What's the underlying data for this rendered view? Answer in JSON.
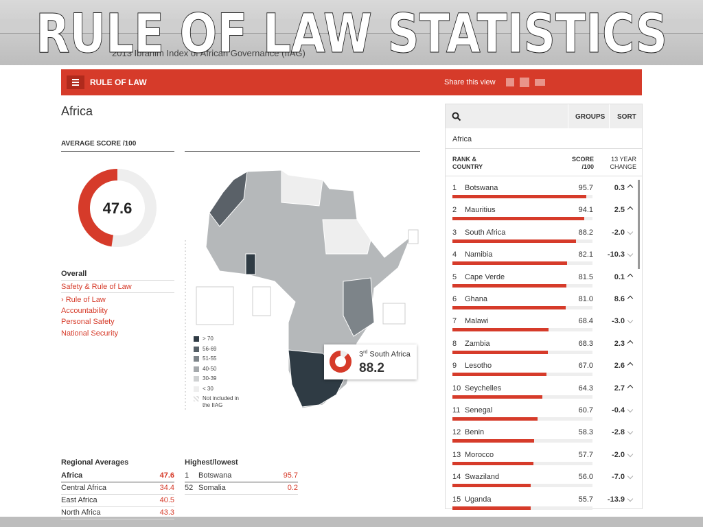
{
  "slide_title": "RULE OF LAW STATISTICS",
  "site_header": "2013 Ibrahim Index of African Governance (IIAG)",
  "nav": {
    "section": "RULE OF LAW",
    "share": "Share this view"
  },
  "region": "Africa",
  "average": {
    "label": "AVERAGE SCORE /100",
    "value": 47.6
  },
  "indicators": {
    "heading": "Overall",
    "items": [
      "Safety & Rule of Law",
      "› Rule of Law",
      "Accountability",
      "Personal Safety",
      "National Security"
    ]
  },
  "legend": [
    "> 70",
    "56-69",
    "51-55",
    "40-50",
    "30-39",
    "< 30",
    "Not included in the IIAG"
  ],
  "callout": {
    "rank": "3",
    "suffix": "rd",
    "country": "South Africa",
    "value": 88.2
  },
  "regional": {
    "title": "Regional Averages",
    "rows": [
      [
        "Africa",
        "47.6"
      ],
      [
        "Central Africa",
        "34.4"
      ],
      [
        "East Africa",
        "40.5"
      ],
      [
        "North Africa",
        "43.3"
      ]
    ]
  },
  "highlow": {
    "title": "Highest/lowest",
    "rows": [
      [
        "1",
        "Botswana",
        "95.7"
      ],
      [
        "52",
        "Somalia",
        "0.2"
      ]
    ]
  },
  "ranking": {
    "groups": "GROUPS",
    "sort": "SORT",
    "filter": "Africa",
    "col_rank": "RANK & COUNTRY",
    "col_score": "SCORE /100",
    "col_change": "13 YEAR CHANGE",
    "rows": [
      [
        "1",
        "Botswana",
        "95.7",
        "0.3"
      ],
      [
        "2",
        "Mauritius",
        "94.1",
        "2.5"
      ],
      [
        "3",
        "South Africa",
        "88.2",
        "-2.0"
      ],
      [
        "4",
        "Namibia",
        "82.1",
        "-10.3"
      ],
      [
        "5",
        "Cape Verde",
        "81.5",
        "0.1"
      ],
      [
        "6",
        "Ghana",
        "81.0",
        "8.6"
      ],
      [
        "7",
        "Malawi",
        "68.4",
        "-3.0"
      ],
      [
        "8",
        "Zambia",
        "68.3",
        "2.3"
      ],
      [
        "9",
        "Lesotho",
        "67.0",
        "2.6"
      ],
      [
        "10",
        "Seychelles",
        "64.3",
        "2.7"
      ],
      [
        "11",
        "Senegal",
        "60.7",
        "-0.4"
      ],
      [
        "12",
        "Benin",
        "58.3",
        "-2.8"
      ],
      [
        "13",
        "Morocco",
        "57.7",
        "-2.0"
      ],
      [
        "14",
        "Swaziland",
        "56.0",
        "-7.0"
      ],
      [
        "15",
        "Uganda",
        "55.7",
        "-13.9"
      ]
    ]
  }
}
